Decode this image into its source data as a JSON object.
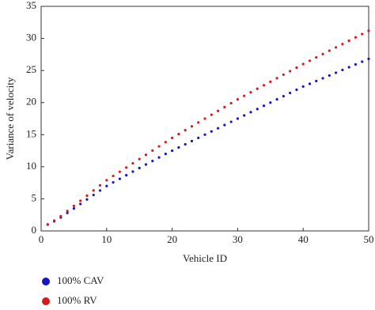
{
  "chart_data": {
    "type": "scatter",
    "x_label": "Vehicle ID",
    "y_label": "Variance of velocity",
    "x": [
      1,
      2,
      3,
      4,
      5,
      6,
      7,
      8,
      9,
      10,
      11,
      12,
      13,
      14,
      15,
      16,
      17,
      18,
      19,
      20,
      21,
      22,
      23,
      24,
      25,
      26,
      27,
      28,
      29,
      30,
      31,
      32,
      33,
      34,
      35,
      36,
      37,
      38,
      39,
      40,
      41,
      42,
      43,
      44,
      45,
      46,
      47,
      48,
      49,
      50
    ],
    "series": [
      {
        "name": "100% CAV",
        "color": "#1515c8",
        "values": [
          1.0,
          1.5,
          2.1,
          2.8,
          3.5,
          4.2,
          4.9,
          5.6,
          6.3,
          7.0,
          7.56,
          8.12,
          8.68,
          9.24,
          9.8,
          10.35,
          10.9,
          11.45,
          12.0,
          12.5,
          13.0,
          13.5,
          14.0,
          14.5,
          15.0,
          15.5,
          16.0,
          16.5,
          17.0,
          17.5,
          18.0,
          18.5,
          19.0,
          19.5,
          20.0,
          20.5,
          21.0,
          21.5,
          22.0,
          22.5,
          22.93,
          23.36,
          23.79,
          24.22,
          24.65,
          25.08,
          25.51,
          25.94,
          26.37,
          26.8
        ]
      },
      {
        "name": "100% RV",
        "color": "#d41c1c",
        "values": [
          1.0,
          1.6,
          2.3,
          3.1,
          3.9,
          4.7,
          5.5,
          6.3,
          7.1,
          7.9,
          8.56,
          9.22,
          9.88,
          10.54,
          11.2,
          11.86,
          12.52,
          13.18,
          13.84,
          14.5,
          15.1,
          15.7,
          16.3,
          16.9,
          17.5,
          18.1,
          18.7,
          19.3,
          19.9,
          20.5,
          21.05,
          21.6,
          22.15,
          22.7,
          23.25,
          23.8,
          24.35,
          24.9,
          25.45,
          26.0,
          26.52,
          27.04,
          27.56,
          28.08,
          28.6,
          29.12,
          29.64,
          30.16,
          30.68,
          31.2
        ]
      }
    ],
    "xlim": [
      0,
      50
    ],
    "ylim": [
      0,
      35
    ],
    "xticks": [
      0,
      10,
      20,
      30,
      40,
      50
    ],
    "yticks": [
      0,
      5,
      10,
      15,
      20,
      25,
      30,
      35
    ]
  }
}
